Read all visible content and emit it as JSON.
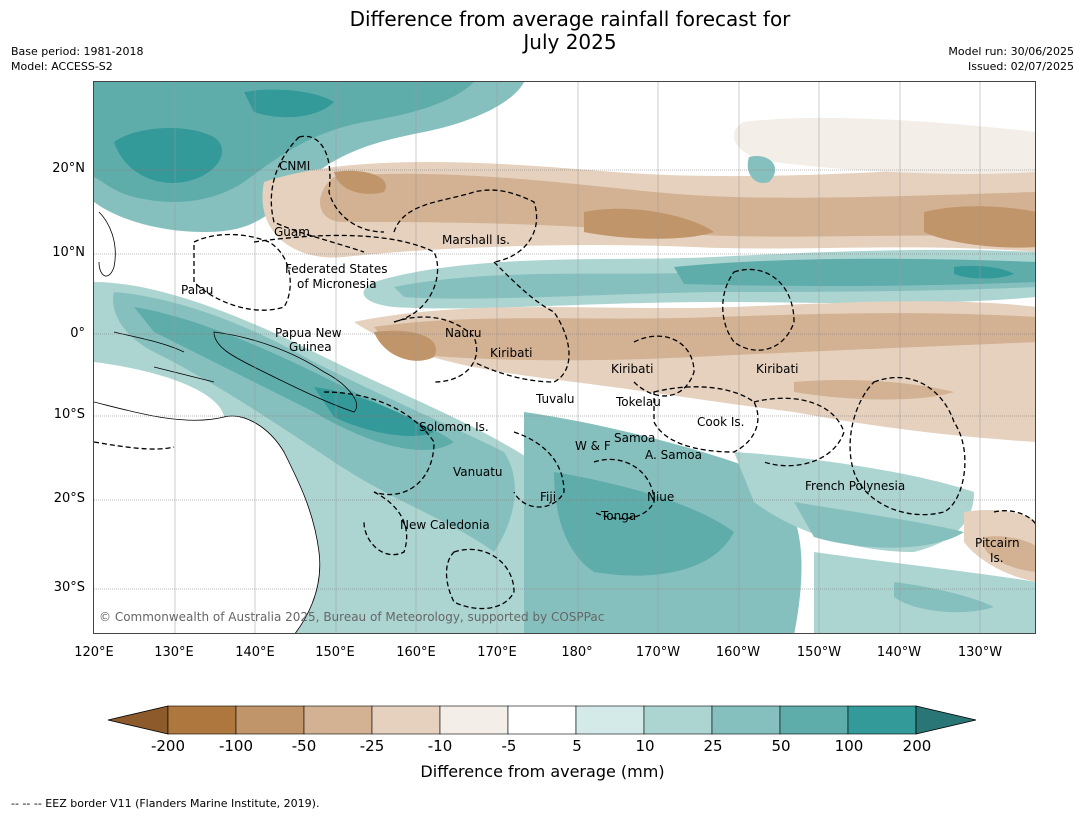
{
  "title_line1": "Difference from average rainfall forecast for",
  "title_line2": "July 2025",
  "base_period": "Base period: 1981-2018",
  "model": "Model: ACCESS-S2",
  "model_run": "Model run: 30/06/2025",
  "issued": "Issued: 02/07/2025",
  "lat_labels": [
    "20°N",
    "10°N",
    "0°",
    "10°S",
    "20°S",
    "30°S"
  ],
  "lon_labels": [
    "120°E",
    "130°E",
    "140°E",
    "150°E",
    "160°E",
    "170°E",
    "180°",
    "170°W",
    "160°W",
    "150°W",
    "140°W",
    "130°W"
  ],
  "places": [
    {
      "id": "cnmi",
      "text": "CNMI"
    },
    {
      "id": "guam",
      "text": "Guam"
    },
    {
      "id": "marshall",
      "text": "Marshall Is."
    },
    {
      "id": "fsm1",
      "text": "Federated States"
    },
    {
      "id": "fsm2",
      "text": "of Micronesia"
    },
    {
      "id": "palau",
      "text": "Palau"
    },
    {
      "id": "png1",
      "text": "Papua New"
    },
    {
      "id": "png2",
      "text": "Guinea"
    },
    {
      "id": "nauru",
      "text": "Nauru"
    },
    {
      "id": "kiribati1",
      "text": "Kiribati"
    },
    {
      "id": "kiribati2",
      "text": "Kiribati"
    },
    {
      "id": "kiribati3",
      "text": "Kiribati"
    },
    {
      "id": "tuvalu",
      "text": "Tuvalu"
    },
    {
      "id": "tokelau",
      "text": "Tokelau"
    },
    {
      "id": "cook",
      "text": "Cook Is."
    },
    {
      "id": "solomon",
      "text": "Solomon Is."
    },
    {
      "id": "wf",
      "text": "W & F"
    },
    {
      "id": "samoa",
      "text": "Samoa"
    },
    {
      "id": "asamoa",
      "text": "A. Samoa"
    },
    {
      "id": "vanuatu",
      "text": "Vanuatu"
    },
    {
      "id": "fiji",
      "text": "Fiji"
    },
    {
      "id": "niue",
      "text": "Niue"
    },
    {
      "id": "frpoly",
      "text": "French Polynesia"
    },
    {
      "id": "tonga",
      "text": "Tonga"
    },
    {
      "id": "newcal",
      "text": "New Caledonia"
    },
    {
      "id": "pitcairn1",
      "text": "Pitcairn"
    },
    {
      "id": "pitcairn2",
      "text": "Is."
    }
  ],
  "copyright": "© Commonwealth of Australia 2025, Bureau of Meteorology, supported by COSPPac",
  "colorbar": {
    "ticks": [
      "-200",
      "-100",
      "-50",
      "-25",
      "-10",
      "-5",
      "5",
      "10",
      "25",
      "50",
      "100",
      "200"
    ],
    "colors": [
      "#8c5a2b",
      "#ad773d",
      "#c1956a",
      "#d3b193",
      "#e5d1bd",
      "#f3eee8",
      "#ffffff",
      "#d4eae8",
      "#acd5d2",
      "#86c0be",
      "#5eadab",
      "#339999",
      "#2a7575"
    ],
    "title": "Difference from average (mm)"
  },
  "footnote": "--  --  -- EEZ border V11 (Flanders Marine Institute, 2019)."
}
